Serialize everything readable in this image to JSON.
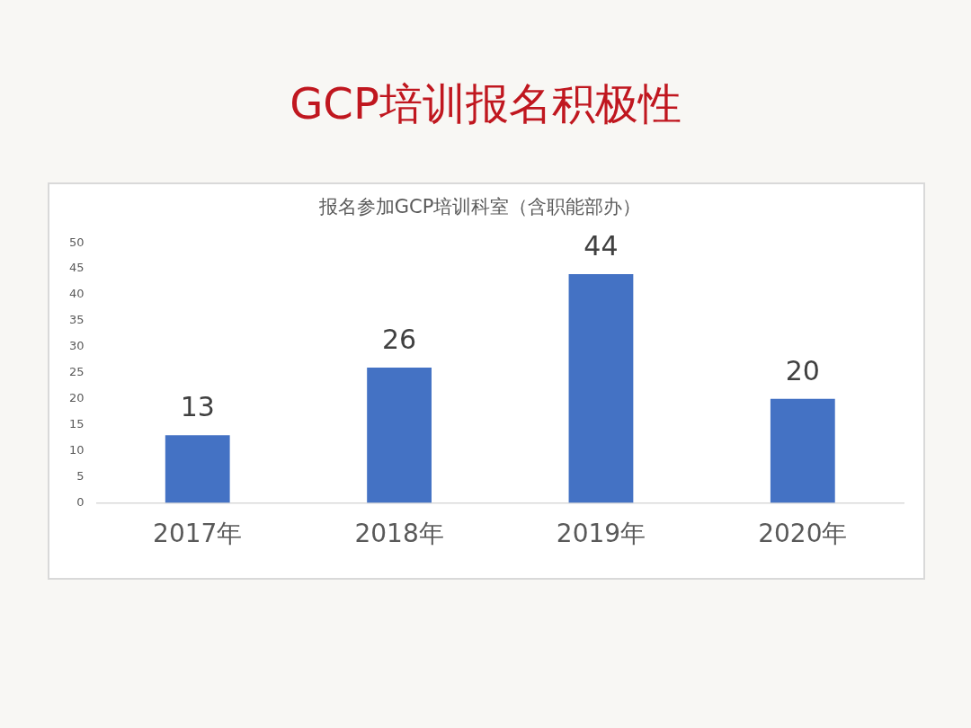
{
  "chart_data": {
    "type": "bar",
    "title": "GCP培训报名积极性",
    "subtitle": "报名参加GCP培训科室（含职能部办）",
    "categories": [
      "2017年",
      "2018年",
      "2019年",
      "2020年"
    ],
    "values": [
      13,
      26,
      44,
      20
    ],
    "color": "#4472c4",
    "ylim": [
      0,
      50
    ],
    "yticks": [
      0,
      5,
      10,
      15,
      20,
      25,
      30,
      35,
      40,
      45,
      50
    ],
    "grid": false,
    "legend": false,
    "data_labels": true
  }
}
